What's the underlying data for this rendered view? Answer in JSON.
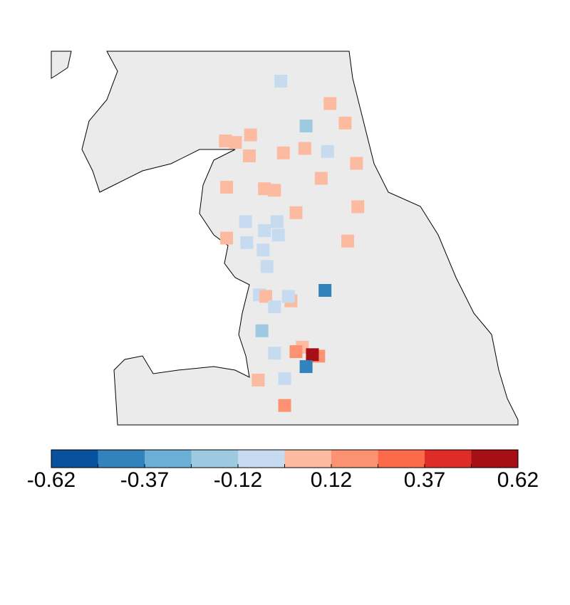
{
  "map_data": {
    "type": "point_map",
    "points": [
      {
        "lon": -2.18,
        "lat": 55.5,
        "value": -0.06
      },
      {
        "lon": -1.79,
        "lat": 55.35,
        "value": 0.06
      },
      {
        "lon": -1.98,
        "lat": 55.2,
        "value": -0.19
      },
      {
        "lon": -1.67,
        "lat": 55.22,
        "value": 0.06
      },
      {
        "lon": -2.62,
        "lat": 55.1,
        "value": 0.06
      },
      {
        "lon": -2.54,
        "lat": 55.09,
        "value": 0.06
      },
      {
        "lon": -2.42,
        "lat": 55.14,
        "value": 0.06
      },
      {
        "lon": -2.43,
        "lat": 55.0,
        "value": 0.06
      },
      {
        "lon": -2.16,
        "lat": 55.02,
        "value": 0.06
      },
      {
        "lon": -1.99,
        "lat": 55.05,
        "value": 0.06
      },
      {
        "lon": -1.81,
        "lat": 55.03,
        "value": -0.06
      },
      {
        "lon": -1.58,
        "lat": 54.95,
        "value": 0.06
      },
      {
        "lon": -1.86,
        "lat": 54.85,
        "value": 0.06
      },
      {
        "lon": -2.61,
        "lat": 54.79,
        "value": 0.06
      },
      {
        "lon": -2.31,
        "lat": 54.78,
        "value": 0.06
      },
      {
        "lon": -2.23,
        "lat": 54.77,
        "value": 0.06
      },
      {
        "lon": -2.06,
        "lat": 54.62,
        "value": 0.06
      },
      {
        "lon": -1.57,
        "lat": 54.66,
        "value": 0.06
      },
      {
        "lon": -2.46,
        "lat": 54.56,
        "value": -0.06
      },
      {
        "lon": -2.21,
        "lat": 54.56,
        "value": -0.06
      },
      {
        "lon": -2.31,
        "lat": 54.5,
        "value": -0.06
      },
      {
        "lon": -2.2,
        "lat": 54.47,
        "value": -0.06
      },
      {
        "lon": -2.61,
        "lat": 54.45,
        "value": 0.06
      },
      {
        "lon": -2.45,
        "lat": 54.42,
        "value": -0.06
      },
      {
        "lon": -1.65,
        "lat": 54.43,
        "value": 0.06
      },
      {
        "lon": -2.32,
        "lat": 54.37,
        "value": -0.06
      },
      {
        "lon": -2.29,
        "lat": 54.26,
        "value": -0.06
      },
      {
        "lon": -1.83,
        "lat": 54.1,
        "value": -0.43
      },
      {
        "lon": -2.35,
        "lat": 54.07,
        "value": -0.06
      },
      {
        "lon": -2.3,
        "lat": 54.06,
        "value": 0.06
      },
      {
        "lon": -2.1,
        "lat": 54.03,
        "value": 0.06
      },
      {
        "lon": -2.12,
        "lat": 54.06,
        "value": -0.06
      },
      {
        "lon": -2.23,
        "lat": 53.99,
        "value": -0.06
      },
      {
        "lon": -2.33,
        "lat": 53.83,
        "value": -0.19
      },
      {
        "lon": -2.01,
        "lat": 53.72,
        "value": 0.06
      },
      {
        "lon": -2.06,
        "lat": 53.69,
        "value": 0.19
      },
      {
        "lon": -2.23,
        "lat": 53.68,
        "value": -0.06
      },
      {
        "lon": -1.88,
        "lat": 53.66,
        "value": 0.19
      },
      {
        "lon": -1.93,
        "lat": 53.67,
        "value": 0.56
      },
      {
        "lon": -1.98,
        "lat": 53.59,
        "value": -0.43
      },
      {
        "lon": -2.36,
        "lat": 53.5,
        "value": 0.06
      },
      {
        "lon": -2.15,
        "lat": 53.51,
        "value": -0.06
      },
      {
        "lon": -2.15,
        "lat": 53.33,
        "value": 0.19
      }
    ],
    "colorbar": {
      "breaks": [
        -0.62,
        -0.496,
        -0.372,
        -0.248,
        -0.124,
        0,
        0.124,
        0.248,
        0.372,
        0.496,
        0.62
      ],
      "colors": [
        "#08519c",
        "#3182bd",
        "#6baed6",
        "#9ecae1",
        "#c6dbef",
        "#fcbba1",
        "#fc9272",
        "#fb6a4a",
        "#de2d26",
        "#a50f15"
      ],
      "ticks": [
        {
          "value": -0.62,
          "label": "-0.62"
        },
        {
          "value": -0.372,
          "label": "-0.37"
        },
        {
          "value": -0.124,
          "label": "-0.12"
        },
        {
          "value": 0.124,
          "label": "0.12"
        },
        {
          "value": 0.372,
          "label": "0.37"
        },
        {
          "value": 0.62,
          "label": "0.62"
        }
      ]
    }
  }
}
